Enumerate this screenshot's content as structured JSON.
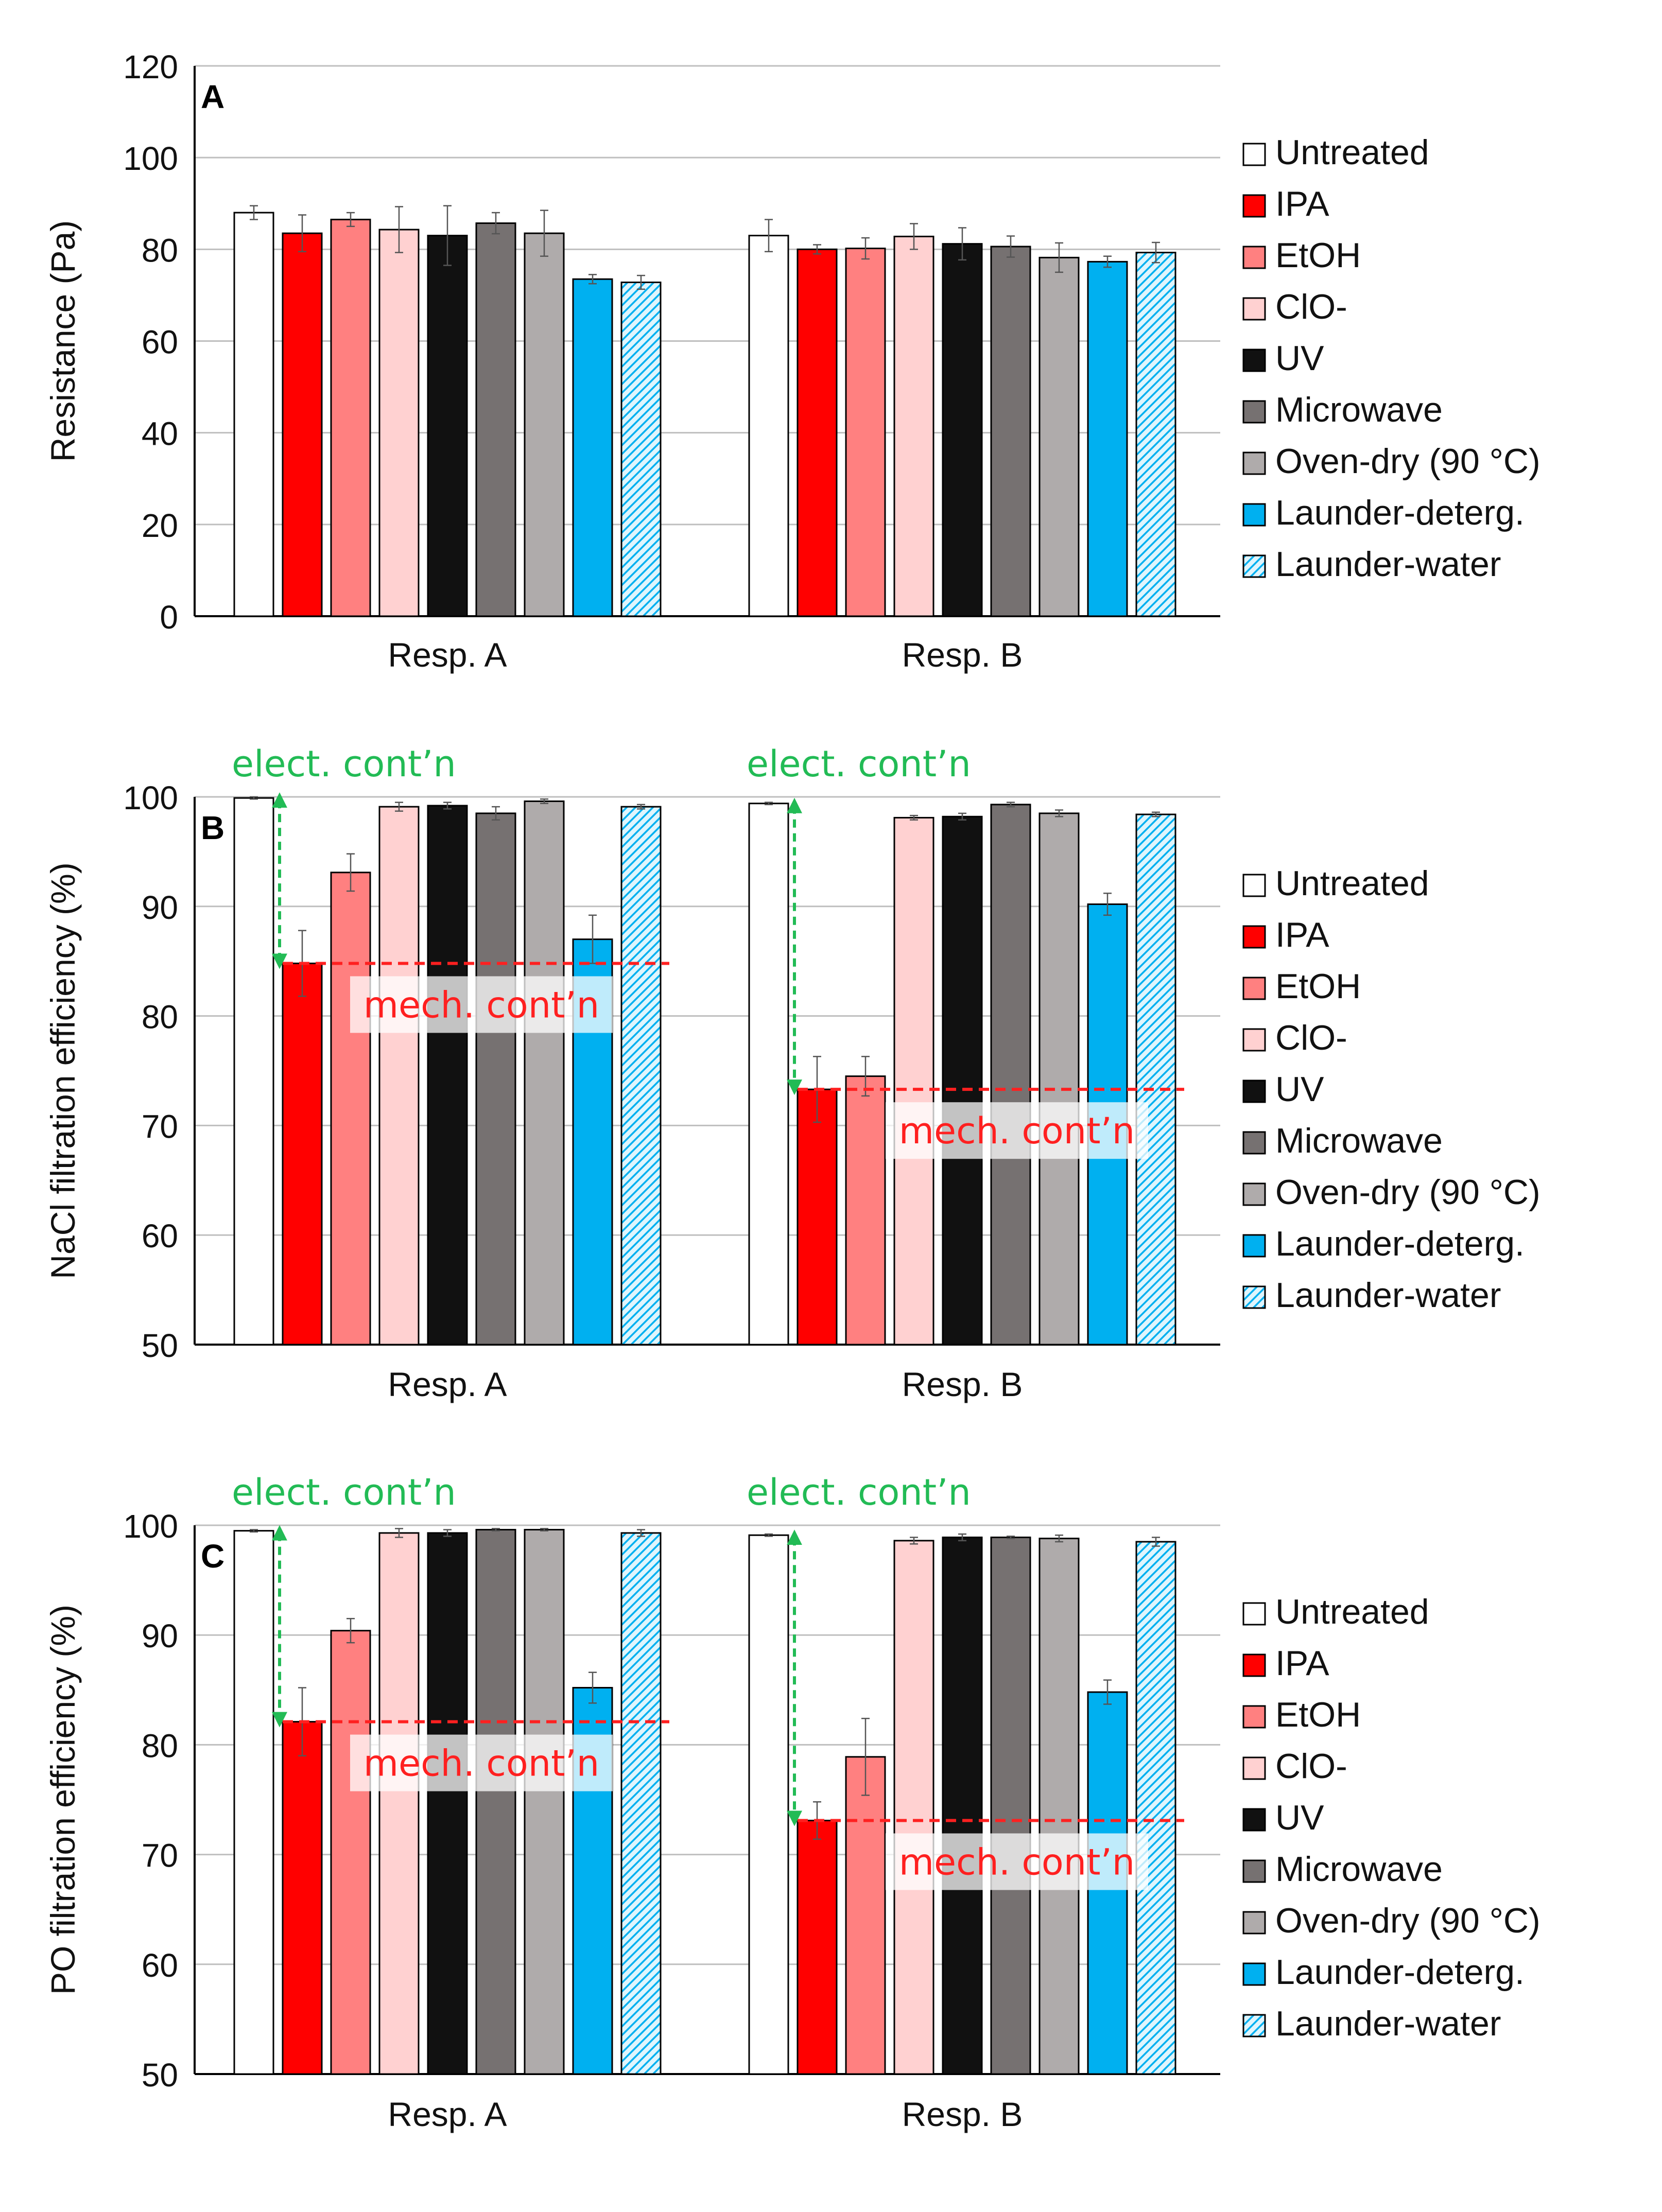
{
  "colors": {
    "Untreated": "#ffffff",
    "IPA": "#ff0000",
    "EtOH": "#ff8080",
    "ClO-": "#ffd1d1",
    "UV": "#111111",
    "Microwave": "#767171",
    "Oven-dry (90 °C)": "#afabab",
    "Launder-deterg.": "#00b0f0",
    "Launder-water": "#00b0f0",
    "annotation_green": "#22bb55",
    "annotation_red": "#ff2020",
    "gridline": "#bfbfbf"
  },
  "chart_data": [
    {
      "type": "bar",
      "panel_label": "A",
      "ylabel": "Resistance (Pa)",
      "xlabel": "",
      "ylim": [
        0,
        120
      ],
      "yticks": [
        0,
        20,
        40,
        60,
        80,
        100,
        120
      ],
      "grid": true,
      "legend_position": "right",
      "categories": [
        "Resp. A",
        "Resp. B"
      ],
      "series": [
        {
          "name": "Untreated",
          "values": [
            88,
            83
          ],
          "errors": [
            1.5,
            3.5
          ],
          "hatched": false
        },
        {
          "name": "IPA",
          "values": [
            83.5,
            80
          ],
          "errors": [
            4,
            1
          ],
          "hatched": false
        },
        {
          "name": "EtOH",
          "values": [
            86.5,
            80.2
          ],
          "errors": [
            1.5,
            2.3
          ],
          "hatched": false
        },
        {
          "name": "ClO-",
          "values": [
            84.3,
            82.8
          ],
          "errors": [
            5,
            2.8
          ],
          "hatched": false
        },
        {
          "name": "UV",
          "values": [
            83,
            81.2
          ],
          "errors": [
            6.5,
            3.5
          ],
          "hatched": false
        },
        {
          "name": "Microwave",
          "values": [
            85.7,
            80.6
          ],
          "errors": [
            2.3,
            2.3
          ],
          "hatched": false
        },
        {
          "name": "Oven-dry (90 °C)",
          "values": [
            83.5,
            78.2
          ],
          "errors": [
            5,
            3.2
          ],
          "hatched": false
        },
        {
          "name": "Launder-deterg.",
          "values": [
            73.5,
            77.3
          ],
          "errors": [
            1,
            1.2
          ],
          "hatched": false
        },
        {
          "name": "Launder-water",
          "values": [
            72.8,
            79.3
          ],
          "errors": [
            1.5,
            2.2
          ],
          "hatched": true
        }
      ],
      "annotations": []
    },
    {
      "type": "bar",
      "panel_label": "B",
      "ylabel": "NaCl filtration efficiency (%)",
      "xlabel": "",
      "ylim": [
        50,
        100
      ],
      "yticks": [
        50,
        60,
        70,
        80,
        90,
        100
      ],
      "grid": true,
      "legend_position": "right",
      "categories": [
        "Resp. A",
        "Resp. B"
      ],
      "series": [
        {
          "name": "Untreated",
          "values": [
            99.9,
            99.4
          ],
          "errors": [
            0.1,
            0.1
          ],
          "hatched": false
        },
        {
          "name": "IPA",
          "values": [
            84.8,
            73.3
          ],
          "errors": [
            3,
            3
          ],
          "hatched": false
        },
        {
          "name": "EtOH",
          "values": [
            93.1,
            74.5
          ],
          "errors": [
            1.7,
            1.8
          ],
          "hatched": false
        },
        {
          "name": "ClO-",
          "values": [
            99.1,
            98.1
          ],
          "errors": [
            0.4,
            0.2
          ],
          "hatched": false
        },
        {
          "name": "UV",
          "values": [
            99.2,
            98.2
          ],
          "errors": [
            0.3,
            0.3
          ],
          "hatched": false
        },
        {
          "name": "Microwave",
          "values": [
            98.5,
            99.3
          ],
          "errors": [
            0.6,
            0.2
          ],
          "hatched": false
        },
        {
          "name": "Oven-dry (90 °C)",
          "values": [
            99.6,
            98.5
          ],
          "errors": [
            0.2,
            0.3
          ],
          "hatched": false
        },
        {
          "name": "Launder-deterg.",
          "values": [
            87,
            90.2
          ],
          "errors": [
            2.2,
            1
          ],
          "hatched": false
        },
        {
          "name": "Launder-water",
          "values": [
            99.1,
            98.4
          ],
          "errors": [
            0.2,
            0.2
          ],
          "hatched": true
        }
      ],
      "annotations": [
        {
          "text": "elect. cont’n",
          "group": 0,
          "from": 99.9,
          "to": 84.8
        },
        {
          "text": "mech. cont’n",
          "group": 0,
          "at": 84.8
        },
        {
          "text": "elect. cont’n",
          "group": 1,
          "from": 99.4,
          "to": 73.3
        },
        {
          "text": "mech. cont’n",
          "group": 1,
          "at": 73.3
        }
      ]
    },
    {
      "type": "bar",
      "panel_label": "C",
      "ylabel": "PO filtration efficiency (%)",
      "xlabel": "",
      "ylim": [
        50,
        100
      ],
      "yticks": [
        50,
        60,
        70,
        80,
        90,
        100
      ],
      "grid": true,
      "legend_position": "right",
      "categories": [
        "Resp. A",
        "Resp. B"
      ],
      "series": [
        {
          "name": "Untreated",
          "values": [
            99.5,
            99.1
          ],
          "errors": [
            0.1,
            0.1
          ],
          "hatched": false
        },
        {
          "name": "IPA",
          "values": [
            82.1,
            73.1
          ],
          "errors": [
            3.1,
            1.7
          ],
          "hatched": false
        },
        {
          "name": "EtOH",
          "values": [
            90.4,
            78.9
          ],
          "errors": [
            1.1,
            3.5
          ],
          "hatched": false
        },
        {
          "name": "ClO-",
          "values": [
            99.3,
            98.6
          ],
          "errors": [
            0.4,
            0.3
          ],
          "hatched": false
        },
        {
          "name": "UV",
          "values": [
            99.3,
            98.9
          ],
          "errors": [
            0.3,
            0.3
          ],
          "hatched": false
        },
        {
          "name": "Microwave",
          "values": [
            99.6,
            98.9
          ],
          "errors": [
            0.1,
            0.1
          ],
          "hatched": false
        },
        {
          "name": "Oven-dry (90 °C)",
          "values": [
            99.6,
            98.8
          ],
          "errors": [
            0.1,
            0.3
          ],
          "hatched": false
        },
        {
          "name": "Launder-deterg.",
          "values": [
            85.2,
            84.8
          ],
          "errors": [
            1.4,
            1.1
          ],
          "hatched": false
        },
        {
          "name": "Launder-water",
          "values": [
            99.3,
            98.5
          ],
          "errors": [
            0.3,
            0.4
          ],
          "hatched": true
        }
      ],
      "annotations": [
        {
          "text": "elect. cont’n",
          "group": 0,
          "from": 99.5,
          "to": 82.1
        },
        {
          "text": "mech. cont’n",
          "group": 0,
          "at": 82.1
        },
        {
          "text": "elect. cont’n",
          "group": 1,
          "from": 99.1,
          "to": 73.1
        },
        {
          "text": "mech. cont’n",
          "group": 1,
          "at": 73.1
        }
      ]
    }
  ]
}
